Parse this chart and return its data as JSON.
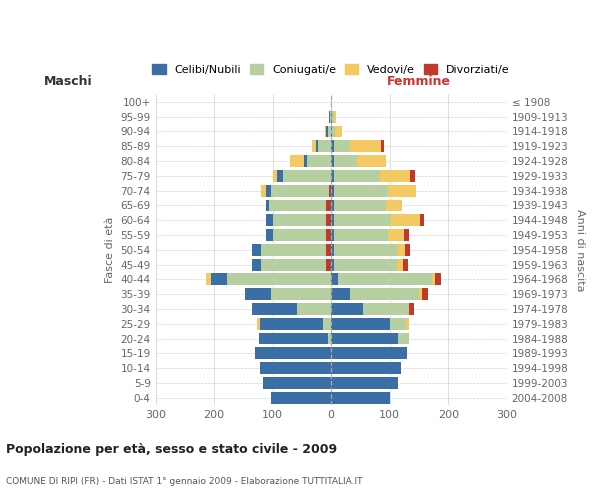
{
  "age_groups": [
    "0-4",
    "5-9",
    "10-14",
    "15-19",
    "20-24",
    "25-29",
    "30-34",
    "35-39",
    "40-44",
    "45-49",
    "50-54",
    "55-59",
    "60-64",
    "65-69",
    "70-74",
    "75-79",
    "80-84",
    "85-89",
    "90-94",
    "95-99",
    "100+"
  ],
  "birth_years": [
    "2004-2008",
    "1999-2003",
    "1994-1998",
    "1989-1993",
    "1984-1988",
    "1979-1983",
    "1974-1978",
    "1969-1973",
    "1964-1968",
    "1959-1963",
    "1954-1958",
    "1949-1953",
    "1944-1948",
    "1939-1943",
    "1934-1938",
    "1929-1933",
    "1924-1928",
    "1919-1923",
    "1914-1918",
    "1909-1913",
    "≤ 1908"
  ],
  "maschi": {
    "celibi": [
      102,
      116,
      122,
      130,
      118,
      108,
      78,
      45,
      28,
      15,
      15,
      12,
      12,
      6,
      10,
      10,
      5,
      4,
      2,
      2,
      0
    ],
    "coniugati": [
      0,
      0,
      0,
      0,
      5,
      14,
      58,
      102,
      178,
      112,
      112,
      92,
      92,
      98,
      98,
      82,
      42,
      22,
      6,
      2,
      0
    ],
    "vedovi": [
      0,
      0,
      0,
      0,
      0,
      5,
      0,
      0,
      8,
      0,
      0,
      0,
      0,
      0,
      8,
      8,
      24,
      6,
      3,
      0,
      0
    ],
    "divorziati": [
      0,
      0,
      0,
      0,
      0,
      0,
      0,
      0,
      0,
      8,
      8,
      8,
      8,
      8,
      4,
      0,
      0,
      0,
      0,
      0,
      0
    ]
  },
  "femmine": {
    "nubili": [
      100,
      115,
      120,
      130,
      115,
      100,
      55,
      32,
      12,
      5,
      5,
      5,
      5,
      5,
      5,
      5,
      5,
      5,
      2,
      2,
      0
    ],
    "coniugate": [
      0,
      0,
      0,
      0,
      18,
      28,
      78,
      118,
      160,
      108,
      108,
      92,
      98,
      88,
      92,
      78,
      40,
      28,
      5,
      3,
      0
    ],
    "vedove": [
      0,
      0,
      0,
      0,
      0,
      5,
      0,
      5,
      5,
      10,
      14,
      28,
      48,
      28,
      48,
      52,
      48,
      52,
      12,
      4,
      2
    ],
    "divorziate": [
      0,
      0,
      0,
      0,
      0,
      0,
      8,
      10,
      10,
      8,
      8,
      8,
      8,
      0,
      0,
      8,
      0,
      5,
      0,
      0,
      0
    ]
  },
  "colors": {
    "celibi": "#3a6ea5",
    "coniugati": "#b5cfa0",
    "vedovi": "#f5c961",
    "divorziati": "#c0392b"
  },
  "title": "Popolazione per età, sesso e stato civile - 2009",
  "subtitle": "COMUNE DI RIPI (FR) - Dati ISTAT 1° gennaio 2009 - Elaborazione TUTTITALIA.IT",
  "ylabel_left": "Fasce di età",
  "ylabel_right": "Anni di nascita",
  "xlabel_maschi": "Maschi",
  "xlabel_femmine": "Femmine",
  "xlim": 300,
  "bg_color": "#ffffff",
  "grid_color": "#d0d0d0",
  "legend_labels": [
    "Celibi/Nubili",
    "Coniugati/e",
    "Vedovi/e",
    "Divorziati/e"
  ]
}
